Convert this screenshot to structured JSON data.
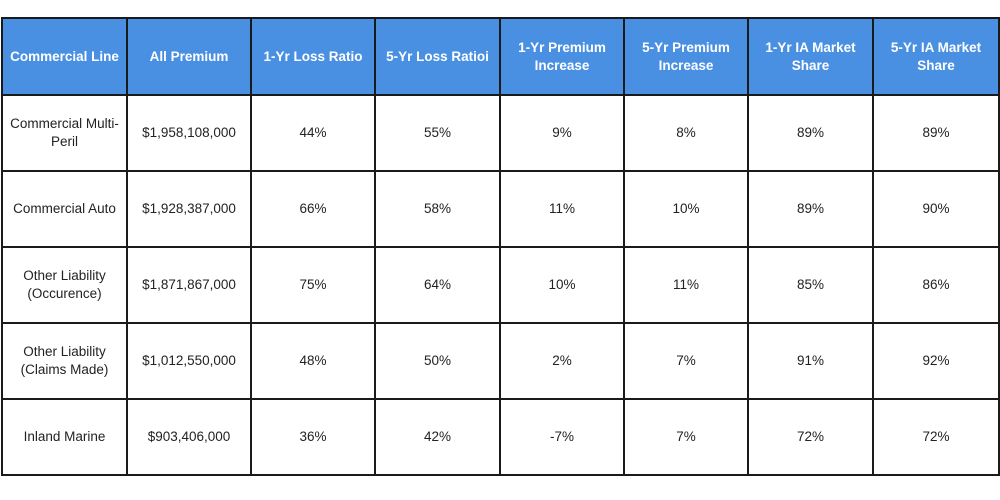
{
  "table": {
    "headers": [
      "Commercial Line",
      "All Premium",
      "1-Yr Loss Ratio",
      "5-Yr Loss Ratioi",
      "1-Yr Premium Increase",
      "5-Yr Premium Increase",
      "1-Yr IA Market Share",
      "5-Yr IA Market Share"
    ],
    "rows": [
      [
        "Commercial Multi-Peril",
        "$1,958,108,000",
        "44%",
        "55%",
        "9%",
        "8%",
        "89%",
        "89%"
      ],
      [
        "Commercial Auto",
        "$1,928,387,000",
        "66%",
        "58%",
        "11%",
        "10%",
        "89%",
        "90%"
      ],
      [
        "Other Liability (Occurence)",
        "$1,871,867,000",
        "75%",
        "64%",
        "10%",
        "11%",
        "85%",
        "86%"
      ],
      [
        "Other Liability (Claims Made)",
        "$1,012,550,000",
        "48%",
        "50%",
        "2%",
        "7%",
        "91%",
        "92%"
      ],
      [
        "Inland Marine",
        "$903,406,000",
        "36%",
        "42%",
        "-7%",
        "7%",
        "72%",
        "72%"
      ]
    ]
  }
}
